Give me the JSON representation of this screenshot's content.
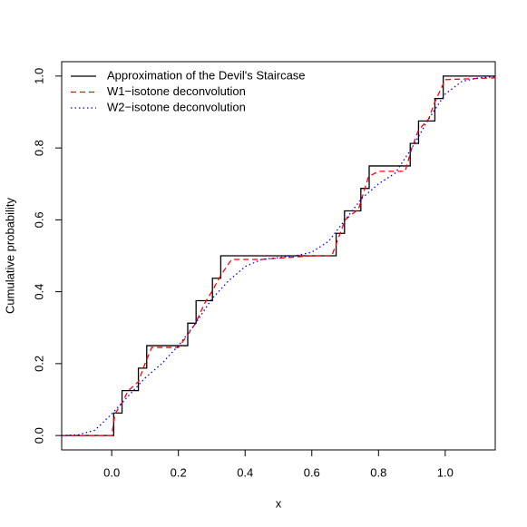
{
  "chart_data": {
    "type": "line",
    "x_label": "x",
    "y_label": "Cumulative probability",
    "xlim": [
      -0.15,
      1.15
    ],
    "ylim": [
      -0.04,
      1.04
    ],
    "xticks": [
      {
        "value": 0,
        "label": "0.0"
      },
      {
        "value": 0.2,
        "label": "0.2"
      },
      {
        "value": 0.4,
        "label": "0.4"
      },
      {
        "value": 0.6,
        "label": "0.6"
      },
      {
        "value": 0.8,
        "label": "0.8"
      },
      {
        "value": 1,
        "label": "1.0"
      }
    ],
    "yticks": [
      {
        "value": 0,
        "label": "0.0"
      },
      {
        "value": 0.2,
        "label": "0.2"
      },
      {
        "value": 0.4,
        "label": "0.4"
      },
      {
        "value": 0.6,
        "label": "0.6"
      },
      {
        "value": 0.8,
        "label": "0.8"
      },
      {
        "value": 1,
        "label": "1.0"
      }
    ],
    "legend": "top-left",
    "series": [
      {
        "name": "Approximation of the Devil's Staircase",
        "color": "#000000",
        "linestyle": "solid",
        "x": [
          -0.15,
          0.006,
          0.006,
          0.031,
          0.031,
          0.08,
          0.08,
          0.105,
          0.105,
          0.228,
          0.228,
          0.253,
          0.253,
          0.302,
          0.302,
          0.327,
          0.327,
          0.673,
          0.673,
          0.698,
          0.698,
          0.747,
          0.747,
          0.772,
          0.772,
          0.895,
          0.895,
          0.92,
          0.92,
          0.969,
          0.969,
          0.994,
          0.994,
          1.15
        ],
        "values": [
          0,
          0,
          0.0625,
          0.0625,
          0.125,
          0.125,
          0.1875,
          0.1875,
          0.25,
          0.25,
          0.3125,
          0.3125,
          0.375,
          0.375,
          0.4375,
          0.4375,
          0.5,
          0.5,
          0.5625,
          0.5625,
          0.625,
          0.625,
          0.6875,
          0.6875,
          0.75,
          0.75,
          0.8125,
          0.8125,
          0.875,
          0.875,
          0.9375,
          0.9375,
          1,
          1
        ]
      },
      {
        "name": "W1−isotone deconvolution",
        "color": "#ff0000",
        "linestyle": "dashed",
        "x": [
          -0.15,
          0,
          0.01,
          0.03,
          0.05,
          0.08,
          0.1,
          0.12,
          0.2,
          0.22,
          0.25,
          0.28,
          0.3,
          0.33,
          0.36,
          0.45,
          0.6,
          0.66,
          0.68,
          0.7,
          0.74,
          0.77,
          0.8,
          0.88,
          0.9,
          0.92,
          0.95,
          0.97,
          1.0,
          1.15
        ],
        "values": [
          0,
          0,
          0.06,
          0.09,
          0.125,
          0.15,
          0.2,
          0.245,
          0.245,
          0.27,
          0.31,
          0.37,
          0.4,
          0.45,
          0.49,
          0.49,
          0.5,
          0.5,
          0.55,
          0.6,
          0.63,
          0.72,
          0.735,
          0.735,
          0.8,
          0.85,
          0.88,
          0.93,
          0.99,
          0.995
        ]
      },
      {
        "name": "W2−isotone deconvolution",
        "color": "#0000ff",
        "linestyle": "dotted",
        "x": [
          -0.15,
          -0.1,
          -0.05,
          0,
          0.05,
          0.1,
          0.15,
          0.2,
          0.25,
          0.3,
          0.35,
          0.4,
          0.45,
          0.5,
          0.55,
          0.6,
          0.65,
          0.7,
          0.75,
          0.8,
          0.85,
          0.9,
          0.95,
          1.0,
          1.05,
          1.1,
          1.15
        ],
        "values": [
          0,
          0.002,
          0.015,
          0.06,
          0.11,
          0.16,
          0.2,
          0.25,
          0.31,
          0.38,
          0.43,
          0.47,
          0.49,
          0.495,
          0.5,
          0.51,
          0.54,
          0.6,
          0.66,
          0.7,
          0.73,
          0.8,
          0.88,
          0.95,
          0.985,
          0.995,
          0.998
        ]
      }
    ]
  }
}
